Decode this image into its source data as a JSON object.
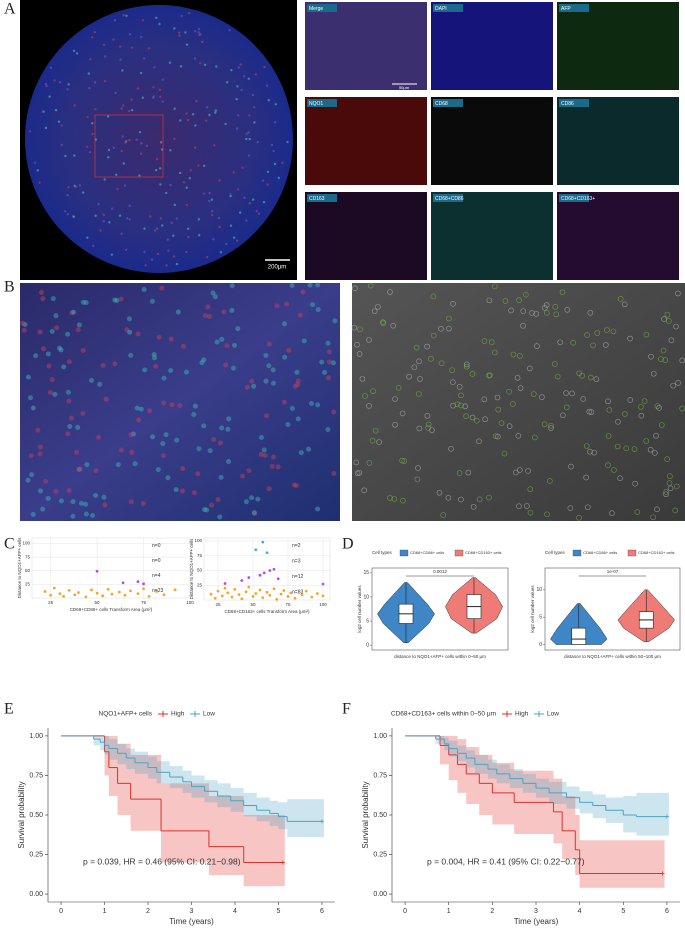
{
  "panel_labels": [
    "A",
    "B",
    "C",
    "D",
    "E",
    "F"
  ],
  "panel_a": {
    "tile_labels": [
      "Merge",
      "DAPI",
      "AFP",
      "NQO1",
      "CD68",
      "CD86",
      "CD163",
      "CD68+CD86",
      "CD68+CD163+"
    ],
    "overview_scale": "200μm",
    "tile_scale": "50μm"
  },
  "chart_data": [
    {
      "type": "scatter",
      "xlabel": "CD68+CD86+ cells Transform Area (μm²)",
      "ylabel": "Distance to NQO1+AFP+ cells",
      "xlim": [
        15,
        100
      ],
      "ylim": [
        0,
        110
      ],
      "xticks": [
        25,
        50,
        75,
        100
      ],
      "yticks": [
        25,
        50,
        75,
        100
      ],
      "grid": true,
      "annotations": [
        "n=0",
        "n=0",
        "n=4",
        "n=23"
      ],
      "series": [
        {
          "color": "#f5a623",
          "x": [
            22,
            25,
            27,
            30,
            32,
            35,
            38,
            40,
            44,
            47,
            50,
            53,
            56,
            58,
            62,
            65,
            68,
            72,
            75,
            78,
            82,
            86,
            92
          ],
          "values": [
            12,
            5,
            18,
            8,
            3,
            14,
            6,
            10,
            2,
            15,
            9,
            4,
            16,
            7,
            11,
            5,
            13,
            8,
            17,
            3,
            12,
            6,
            15
          ]
        },
        {
          "color": "#b44fe0",
          "x": [
            50,
            64,
            72,
            75
          ],
          "values": [
            49,
            28,
            30,
            26
          ]
        }
      ]
    },
    {
      "type": "scatter",
      "xlabel": "CD68+CD163+ cells Transform Area (μm²)",
      "ylabel": "Distance to NQO1+AFP+ cells",
      "xlim": [
        15,
        105
      ],
      "ylim": [
        0,
        105
      ],
      "xticks": [
        25,
        50,
        75,
        100
      ],
      "yticks": [
        25,
        50,
        75,
        100
      ],
      "grid": true,
      "annotations": [
        "n=2",
        "n=3",
        "n=12",
        "n=83"
      ],
      "series": [
        {
          "color": "#f5a623",
          "x": [
            20,
            23,
            25,
            28,
            30,
            32,
            35,
            37,
            40,
            42,
            45,
            47,
            50,
            52,
            55,
            57,
            60,
            62,
            65,
            67,
            70,
            72,
            75,
            77,
            80,
            85,
            88,
            92,
            96,
            100
          ],
          "values": [
            10,
            3,
            15,
            7,
            20,
            12,
            5,
            18,
            9,
            2,
            14,
            22,
            6,
            11,
            17,
            4,
            13,
            8,
            19,
            1,
            10,
            16,
            6,
            12,
            3,
            9,
            15,
            5,
            11,
            7
          ]
        },
        {
          "color": "#b44fe0",
          "x": [
            30,
            42,
            47,
            55,
            58,
            62,
            65,
            68,
            100
          ],
          "values": [
            28,
            33,
            38,
            42,
            46,
            50,
            52,
            36,
            27
          ]
        },
        {
          "color": "#4aa8e8",
          "x": [
            52,
            57,
            60
          ],
          "values": [
            85,
            98,
            80
          ]
        }
      ]
    },
    {
      "type": "violin",
      "legend_title": "Cell types",
      "categories": [
        "CD68+CD86+ cells",
        "CD68+CD163+ cells"
      ],
      "colors": [
        "#3f86c6",
        "#ef7b76"
      ],
      "min": [
        0.5,
        2.5
      ],
      "q1": [
        4.5,
        5.5
      ],
      "median": [
        6.5,
        8
      ],
      "q3": [
        8.5,
        10.5
      ],
      "max": [
        13,
        14
      ],
      "ylim": [
        -1,
        16
      ],
      "yticks": [
        0,
        5,
        10,
        15
      ],
      "ylabel": "log2 cell number values",
      "xlabel": "distance to NQO1+AFP+ cells within 0~50 μm",
      "annotation": "0.0012"
    },
    {
      "type": "violin",
      "legend_title": "Cell types",
      "categories": [
        "CD68+CD86+ cells",
        "CD68+CD163+ cells"
      ],
      "colors": [
        "#3f86c6",
        "#ef7b76"
      ],
      "min": [
        0,
        0.5
      ],
      "q1": [
        0,
        3
      ],
      "median": [
        1,
        4.5
      ],
      "q3": [
        3,
        6
      ],
      "max": [
        7.5,
        10
      ],
      "ylim": [
        -1,
        14
      ],
      "yticks": [
        0,
        5,
        10
      ],
      "ylabel": "log2 cell number values",
      "xlabel": "distance to NQO1+AFP+ cells within 50~100 μm",
      "annotation": "1e-07"
    },
    {
      "type": "survival",
      "legend_title": "NQO1+AFP+ cells",
      "xlabel": "Time (years)",
      "ylabel": "Survival probability",
      "xlim": [
        -0.3,
        6.3
      ],
      "ylim": [
        -0.05,
        1.05
      ],
      "xticks": [
        0,
        1,
        2,
        3,
        4,
        5,
        6
      ],
      "yticks": [
        {
          "value": 0,
          "label": "0.00"
        },
        {
          "value": 0.25,
          "label": "0.25"
        },
        {
          "value": 0.5,
          "label": "0.50"
        },
        {
          "value": 0.75,
          "label": "0.75"
        },
        {
          "value": 1,
          "label": "1.00"
        }
      ],
      "annotation": "p = 0.039, HR = 0.46 (95% CI: 0.21−0.98)",
      "series": [
        {
          "name": "High",
          "color": "#e0302a",
          "x": [
            0,
            1.0,
            1.1,
            1.3,
            1.6,
            2.3,
            3.4,
            4.2,
            5.1
          ],
          "values": [
            1,
            0.9,
            0.8,
            0.7,
            0.6,
            0.4,
            0.3,
            0.2,
            0.2
          ],
          "upper": [
            1,
            1,
            1,
            0.95,
            0.88,
            0.7,
            0.62,
            0.5,
            0.5
          ],
          "lower": [
            1,
            0.75,
            0.62,
            0.5,
            0.4,
            0.2,
            0.12,
            0.05,
            0.05
          ]
        },
        {
          "name": "Low",
          "color": "#4ba3c3",
          "x": [
            0,
            0.75,
            0.9,
            1.0,
            1.1,
            1.3,
            1.5,
            1.7,
            2.0,
            2.2,
            2.5,
            2.8,
            3.0,
            3.3,
            3.6,
            3.9,
            4.2,
            4.5,
            4.8,
            5.0,
            5.2,
            6.0
          ],
          "values": [
            1,
            0.98,
            0.96,
            0.94,
            0.92,
            0.89,
            0.86,
            0.83,
            0.8,
            0.77,
            0.74,
            0.71,
            0.68,
            0.65,
            0.62,
            0.59,
            0.56,
            0.53,
            0.51,
            0.49,
            0.46,
            0.46
          ],
          "upper": [
            1,
            1,
            1,
            1,
            0.98,
            0.95,
            0.92,
            0.9,
            0.87,
            0.84,
            0.81,
            0.78,
            0.75,
            0.72,
            0.7,
            0.67,
            0.64,
            0.61,
            0.59,
            0.58,
            0.6,
            0.6
          ],
          "lower": [
            1,
            0.94,
            0.91,
            0.88,
            0.85,
            0.82,
            0.79,
            0.76,
            0.73,
            0.7,
            0.67,
            0.64,
            0.61,
            0.58,
            0.55,
            0.52,
            0.49,
            0.46,
            0.43,
            0.41,
            0.36,
            0.36
          ]
        }
      ]
    },
    {
      "type": "survival",
      "legend_title": "CD68+CD163+ cells within 0~50 μm",
      "xlabel": "Time (years)",
      "ylabel": "Survival probability",
      "xlim": [
        -0.3,
        6.3
      ],
      "ylim": [
        -0.05,
        1.05
      ],
      "xticks": [
        0,
        1,
        2,
        3,
        4,
        5,
        6
      ],
      "yticks": [
        {
          "value": 0,
          "label": "0.00"
        },
        {
          "value": 0.25,
          "label": "0.25"
        },
        {
          "value": 0.5,
          "label": "0.50"
        },
        {
          "value": 0.75,
          "label": "0.75"
        },
        {
          "value": 1,
          "label": "1.00"
        }
      ],
      "annotation": "p = 0.004, HR = 0.41 (95% CI: 0.22−0.77)",
      "series": [
        {
          "name": "High",
          "color": "#e0302a",
          "x": [
            0,
            0.8,
            1.0,
            1.2,
            1.4,
            1.7,
            2.0,
            2.5,
            3.4,
            3.6,
            3.9,
            4.0,
            5.9
          ],
          "values": [
            1,
            0.94,
            0.88,
            0.82,
            0.76,
            0.7,
            0.64,
            0.58,
            0.52,
            0.4,
            0.28,
            0.13,
            0.13
          ],
          "upper": [
            1,
            1,
            1,
            0.98,
            0.93,
            0.88,
            0.83,
            0.78,
            0.73,
            0.62,
            0.5,
            0.34,
            0.34
          ],
          "lower": [
            1,
            0.82,
            0.72,
            0.64,
            0.57,
            0.5,
            0.44,
            0.38,
            0.32,
            0.22,
            0.12,
            0.04,
            0.04
          ]
        },
        {
          "name": "Low",
          "color": "#4ba3c3",
          "x": [
            0,
            0.7,
            0.9,
            1.0,
            1.2,
            1.4,
            1.6,
            1.9,
            2.1,
            2.4,
            2.7,
            3.0,
            3.3,
            3.7,
            4.0,
            4.3,
            4.6,
            5.0,
            5.3,
            6.0
          ],
          "values": [
            1,
            0.98,
            0.95,
            0.92,
            0.89,
            0.86,
            0.82,
            0.79,
            0.76,
            0.73,
            0.7,
            0.67,
            0.64,
            0.61,
            0.58,
            0.56,
            0.53,
            0.5,
            0.49,
            0.49
          ],
          "upper": [
            1,
            1,
            0.99,
            0.97,
            0.94,
            0.91,
            0.88,
            0.85,
            0.82,
            0.79,
            0.76,
            0.73,
            0.71,
            0.68,
            0.65,
            0.63,
            0.61,
            0.62,
            0.64,
            0.64
          ],
          "lower": [
            1,
            0.95,
            0.91,
            0.87,
            0.84,
            0.8,
            0.76,
            0.73,
            0.7,
            0.67,
            0.64,
            0.61,
            0.57,
            0.54,
            0.51,
            0.48,
            0.45,
            0.39,
            0.37,
            0.37
          ]
        }
      ]
    }
  ]
}
